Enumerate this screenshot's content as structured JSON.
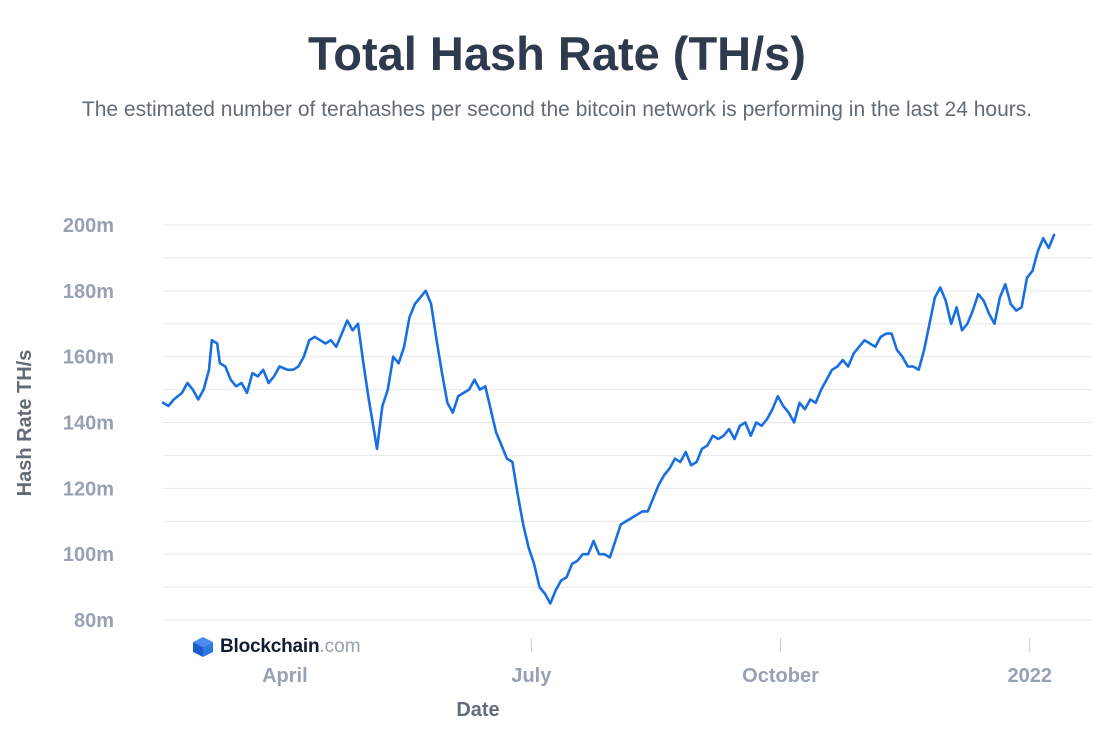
{
  "header": {
    "title": "Total Hash Rate (TH/s)",
    "subtitle": "The estimated number of terahashes per second the bitcoin network is performing in the last 24 hours."
  },
  "brand": {
    "name": "Blockchain",
    "domain": ".com"
  },
  "colors": {
    "line": "#1a6fe0",
    "grid": "#e6e8ec",
    "tick_text": "#98a1b2",
    "axis_title": "#626b78",
    "title": "#2f3a4c"
  },
  "chart_data": {
    "type": "line",
    "title": "Total Hash Rate (TH/s)",
    "xlabel": "Date",
    "ylabel": "Hash Rate TH/s",
    "ylim": [
      80000000,
      200000000
    ],
    "xlim": [
      "2021-02-15",
      "2022-01-24"
    ],
    "grid": "horizontal",
    "y_ticks": [
      {
        "value": 80000000,
        "label": "80m"
      },
      {
        "value": 100000000,
        "label": "100m"
      },
      {
        "value": 120000000,
        "label": "120m"
      },
      {
        "value": 140000000,
        "label": "140m"
      },
      {
        "value": 160000000,
        "label": "160m"
      },
      {
        "value": 180000000,
        "label": "180m"
      },
      {
        "value": 200000000,
        "label": "200m"
      }
    ],
    "x_ticks": [
      {
        "value": "2021-04-01",
        "label": "April"
      },
      {
        "value": "2021-07-01",
        "label": "July"
      },
      {
        "value": "2021-10-01",
        "label": "October"
      },
      {
        "value": "2022-01-01",
        "label": "2022"
      }
    ],
    "series": [
      {
        "color": "#1a6fe0",
        "points": [
          [
            "2021-02-15",
            146
          ],
          [
            "2021-02-17",
            145
          ],
          [
            "2021-02-19",
            147
          ],
          [
            "2021-02-22",
            149
          ],
          [
            "2021-02-24",
            152
          ],
          [
            "2021-02-26",
            150
          ],
          [
            "2021-02-28",
            147
          ],
          [
            "2021-03-02",
            150
          ],
          [
            "2021-03-04",
            156
          ],
          [
            "2021-03-05",
            165
          ],
          [
            "2021-03-07",
            164
          ],
          [
            "2021-03-08",
            158
          ],
          [
            "2021-03-10",
            157
          ],
          [
            "2021-03-12",
            153
          ],
          [
            "2021-03-14",
            151
          ],
          [
            "2021-03-16",
            152
          ],
          [
            "2021-03-18",
            149
          ],
          [
            "2021-03-20",
            155
          ],
          [
            "2021-03-22",
            154
          ],
          [
            "2021-03-24",
            156
          ],
          [
            "2021-03-26",
            152
          ],
          [
            "2021-03-28",
            154
          ],
          [
            "2021-03-30",
            157
          ],
          [
            "2021-04-02",
            156
          ],
          [
            "2021-04-04",
            156
          ],
          [
            "2021-04-06",
            157
          ],
          [
            "2021-04-08",
            160
          ],
          [
            "2021-04-10",
            165
          ],
          [
            "2021-04-12",
            166
          ],
          [
            "2021-04-14",
            165
          ],
          [
            "2021-04-16",
            164
          ],
          [
            "2021-04-18",
            165
          ],
          [
            "2021-04-20",
            163
          ],
          [
            "2021-04-22",
            167
          ],
          [
            "2021-04-24",
            171
          ],
          [
            "2021-04-26",
            168
          ],
          [
            "2021-04-28",
            170
          ],
          [
            "2021-04-30",
            158
          ],
          [
            "2021-05-02",
            147
          ],
          [
            "2021-05-04",
            137
          ],
          [
            "2021-05-05",
            132
          ],
          [
            "2021-05-07",
            145
          ],
          [
            "2021-05-09",
            150
          ],
          [
            "2021-05-11",
            160
          ],
          [
            "2021-05-13",
            158
          ],
          [
            "2021-05-15",
            163
          ],
          [
            "2021-05-17",
            172
          ],
          [
            "2021-05-19",
            176
          ],
          [
            "2021-05-21",
            178
          ],
          [
            "2021-05-23",
            180
          ],
          [
            "2021-05-25",
            176
          ],
          [
            "2021-05-27",
            165
          ],
          [
            "2021-05-29",
            155
          ],
          [
            "2021-05-31",
            146
          ],
          [
            "2021-06-02",
            143
          ],
          [
            "2021-06-04",
            148
          ],
          [
            "2021-06-06",
            149
          ],
          [
            "2021-06-08",
            150
          ],
          [
            "2021-06-10",
            153
          ],
          [
            "2021-06-12",
            150
          ],
          [
            "2021-06-14",
            151
          ],
          [
            "2021-06-16",
            144
          ],
          [
            "2021-06-18",
            137
          ],
          [
            "2021-06-20",
            133
          ],
          [
            "2021-06-22",
            129
          ],
          [
            "2021-06-24",
            128
          ],
          [
            "2021-06-26",
            118
          ],
          [
            "2021-06-28",
            109
          ],
          [
            "2021-06-30",
            102
          ],
          [
            "2021-07-02",
            97
          ],
          [
            "2021-07-04",
            90
          ],
          [
            "2021-07-06",
            88
          ],
          [
            "2021-07-08",
            85
          ],
          [
            "2021-07-10",
            89
          ],
          [
            "2021-07-12",
            92
          ],
          [
            "2021-07-14",
            93
          ],
          [
            "2021-07-16",
            97
          ],
          [
            "2021-07-18",
            98
          ],
          [
            "2021-07-20",
            100
          ],
          [
            "2021-07-22",
            100
          ],
          [
            "2021-07-24",
            104
          ],
          [
            "2021-07-26",
            100
          ],
          [
            "2021-07-28",
            100
          ],
          [
            "2021-07-30",
            99
          ],
          [
            "2021-08-01",
            104
          ],
          [
            "2021-08-03",
            109
          ],
          [
            "2021-08-05",
            110
          ],
          [
            "2021-08-07",
            111
          ],
          [
            "2021-08-09",
            112
          ],
          [
            "2021-08-11",
            113
          ],
          [
            "2021-08-13",
            113
          ],
          [
            "2021-08-15",
            117
          ],
          [
            "2021-08-17",
            121
          ],
          [
            "2021-08-19",
            124
          ],
          [
            "2021-08-21",
            126
          ],
          [
            "2021-08-23",
            129
          ],
          [
            "2021-08-25",
            128
          ],
          [
            "2021-08-27",
            131
          ],
          [
            "2021-08-29",
            127
          ],
          [
            "2021-08-31",
            128
          ],
          [
            "2021-09-02",
            132
          ],
          [
            "2021-09-04",
            133
          ],
          [
            "2021-09-06",
            136
          ],
          [
            "2021-09-08",
            135
          ],
          [
            "2021-09-10",
            136
          ],
          [
            "2021-09-12",
            138
          ],
          [
            "2021-09-14",
            135
          ],
          [
            "2021-09-16",
            139
          ],
          [
            "2021-09-18",
            140
          ],
          [
            "2021-09-20",
            136
          ],
          [
            "2021-09-22",
            140
          ],
          [
            "2021-09-24",
            139
          ],
          [
            "2021-09-26",
            141
          ],
          [
            "2021-09-28",
            144
          ],
          [
            "2021-09-30",
            148
          ],
          [
            "2021-10-02",
            145
          ],
          [
            "2021-10-04",
            143
          ],
          [
            "2021-10-06",
            140
          ],
          [
            "2021-10-08",
            146
          ],
          [
            "2021-10-10",
            144
          ],
          [
            "2021-10-12",
            147
          ],
          [
            "2021-10-14",
            146
          ],
          [
            "2021-10-16",
            150
          ],
          [
            "2021-10-18",
            153
          ],
          [
            "2021-10-20",
            156
          ],
          [
            "2021-10-22",
            157
          ],
          [
            "2021-10-24",
            159
          ],
          [
            "2021-10-26",
            157
          ],
          [
            "2021-10-28",
            161
          ],
          [
            "2021-10-30",
            163
          ],
          [
            "2021-11-01",
            165
          ],
          [
            "2021-11-03",
            164
          ],
          [
            "2021-11-05",
            163
          ],
          [
            "2021-11-07",
            166
          ],
          [
            "2021-11-09",
            167
          ],
          [
            "2021-11-11",
            167
          ],
          [
            "2021-11-13",
            162
          ],
          [
            "2021-11-15",
            160
          ],
          [
            "2021-11-17",
            157
          ],
          [
            "2021-11-19",
            157
          ],
          [
            "2021-11-21",
            156
          ],
          [
            "2021-11-23",
            162
          ],
          [
            "2021-11-25",
            170
          ],
          [
            "2021-11-27",
            178
          ],
          [
            "2021-11-29",
            181
          ],
          [
            "2021-12-01",
            177
          ],
          [
            "2021-12-03",
            170
          ],
          [
            "2021-12-05",
            175
          ],
          [
            "2021-12-07",
            168
          ],
          [
            "2021-12-09",
            170
          ],
          [
            "2021-12-11",
            174
          ],
          [
            "2021-12-13",
            179
          ],
          [
            "2021-12-15",
            177
          ],
          [
            "2021-12-17",
            173
          ],
          [
            "2021-12-19",
            170
          ],
          [
            "2021-12-21",
            178
          ],
          [
            "2021-12-23",
            182
          ],
          [
            "2021-12-25",
            176
          ],
          [
            "2021-12-27",
            174
          ],
          [
            "2021-12-29",
            175
          ],
          [
            "2021-12-31",
            184
          ],
          [
            "2022-01-02",
            186
          ],
          [
            "2022-01-04",
            192
          ],
          [
            "2022-01-06",
            196
          ],
          [
            "2022-01-08",
            193
          ],
          [
            "2022-01-10",
            197
          ]
        ]
      }
    ]
  }
}
